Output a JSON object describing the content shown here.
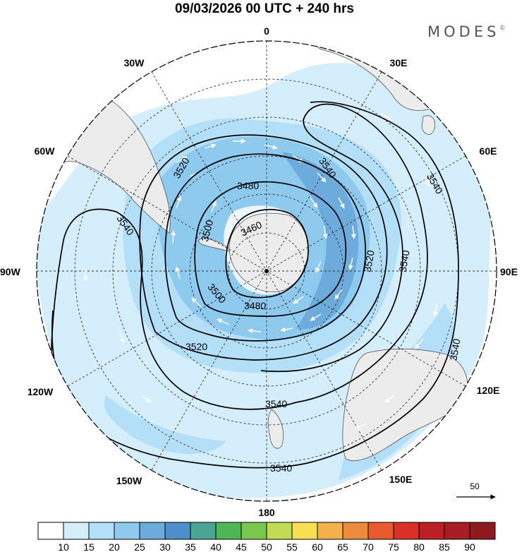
{
  "title": "09/03/2026  00 UTC  + 240 hrs",
  "brand": "MODES",
  "brand_mark": "©",
  "longitude_labels": {
    "top": "0",
    "e30": "30E",
    "e60": "60E",
    "e90": "90E",
    "e120": "120E",
    "e150": "150E",
    "bottom": "180",
    "w150": "150W",
    "w120": "120W",
    "w90": "90W",
    "w60": "60W",
    "w30": "30W"
  },
  "contour_labels": {
    "c1": "3540",
    "c2": "3540",
    "c3": "3540",
    "c4": "3540",
    "c5": "3540",
    "c6": "3540",
    "c7": "3540",
    "c8": "3520",
    "c9": "3520",
    "c10": "3520",
    "c11": "3500",
    "c12": "3500",
    "c13": "3480",
    "c14": "3480",
    "c15": "3460"
  },
  "vector_scale_label": "50",
  "colorbar": {
    "colors": [
      "#ffffff",
      "#d4eefc",
      "#b3e0f8",
      "#8ec9ee",
      "#6cabdc",
      "#4d8fc8",
      "#4aa593",
      "#4fb655",
      "#7bc74d",
      "#c1dc52",
      "#f6df50",
      "#f4b04a",
      "#ee8a3c",
      "#e75b2e",
      "#d93128",
      "#be1f26",
      "#a81c24",
      "#8e1a1f"
    ],
    "labels": [
      "10",
      "15",
      "20",
      "25",
      "30",
      "35",
      "40",
      "45",
      "50",
      "55",
      "60",
      "65",
      "70",
      "75",
      "80",
      "85",
      "90"
    ]
  }
}
